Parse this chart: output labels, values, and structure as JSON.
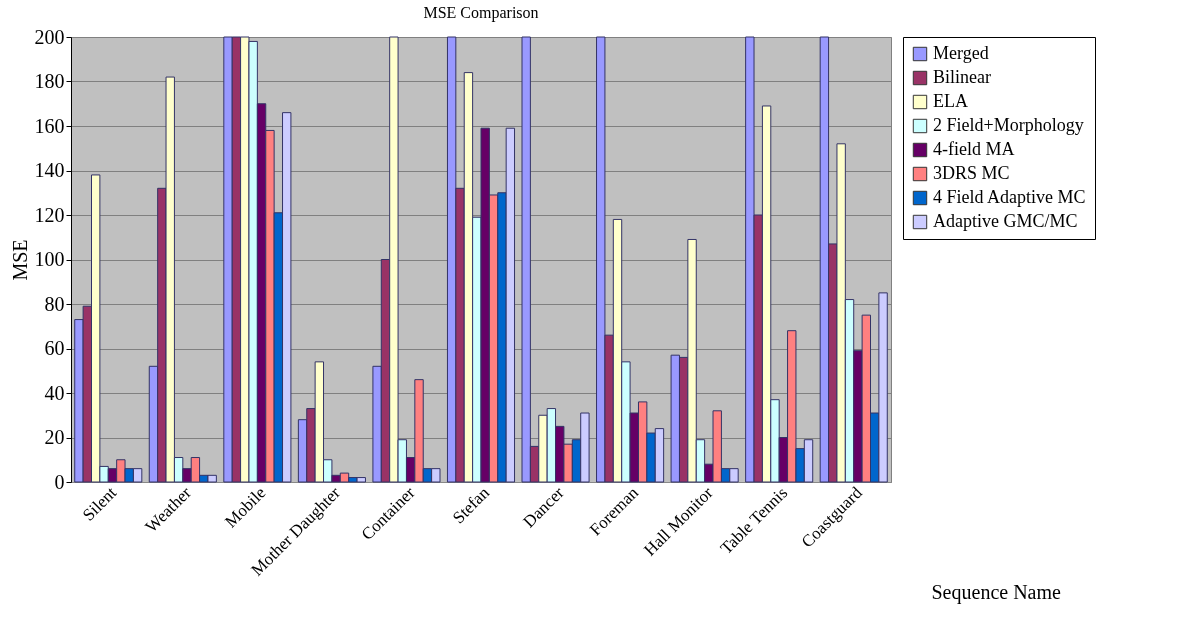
{
  "chart_data": {
    "type": "bar",
    "title": "MSE Comparison",
    "xlabel": "Sequence Name",
    "ylabel": "MSE",
    "categories": [
      "Silent",
      "Weather",
      "Mobile",
      "Mother Daughter",
      "Container",
      "Stefan",
      "Dancer",
      "Foreman",
      "Hall Monitor",
      "Table Tennis",
      "Coastguard"
    ],
    "series": [
      {
        "name": "Merged",
        "color": "#9999ff",
        "values": [
          73,
          52,
          200,
          28,
          52,
          200,
          200,
          200,
          57,
          200,
          200
        ]
      },
      {
        "name": "Bilinear",
        "color": "#993366",
        "values": [
          79,
          132,
          200,
          33,
          100,
          132,
          16,
          66,
          56,
          120,
          107
        ]
      },
      {
        "name": "ELA",
        "color": "#ffffcc",
        "values": [
          138,
          182,
          200,
          54,
          200,
          184,
          30,
          118,
          109,
          169,
          152
        ]
      },
      {
        "name": "2 Field+Morphology",
        "color": "#ccffff",
        "values": [
          7,
          11,
          198,
          10,
          19,
          119,
          33,
          54,
          19,
          37,
          82
        ]
      },
      {
        "name": "4-field MA",
        "color": "#660066",
        "values": [
          6,
          6,
          170,
          3,
          11,
          159,
          25,
          31,
          8,
          20,
          59
        ]
      },
      {
        "name": "3DRS MC",
        "color": "#ff8080",
        "values": [
          10,
          11,
          158,
          4,
          46,
          129,
          17,
          36,
          32,
          68,
          75
        ]
      },
      {
        "name": "4 Field Adaptive MC",
        "color": "#0066cc",
        "values": [
          6,
          3,
          121,
          2,
          6,
          130,
          19,
          22,
          6,
          15,
          31
        ]
      },
      {
        "name": "Adaptive GMC/MC",
        "color": "#ccccff",
        "values": [
          6,
          3,
          166,
          2,
          6,
          159,
          31,
          24,
          6,
          19,
          85
        ]
      }
    ],
    "ylim": [
      0,
      200
    ],
    "yticks": [
      0,
      20,
      40,
      60,
      80,
      100,
      120,
      140,
      160,
      180,
      200
    ],
    "grid": "y",
    "legend": "right"
  }
}
